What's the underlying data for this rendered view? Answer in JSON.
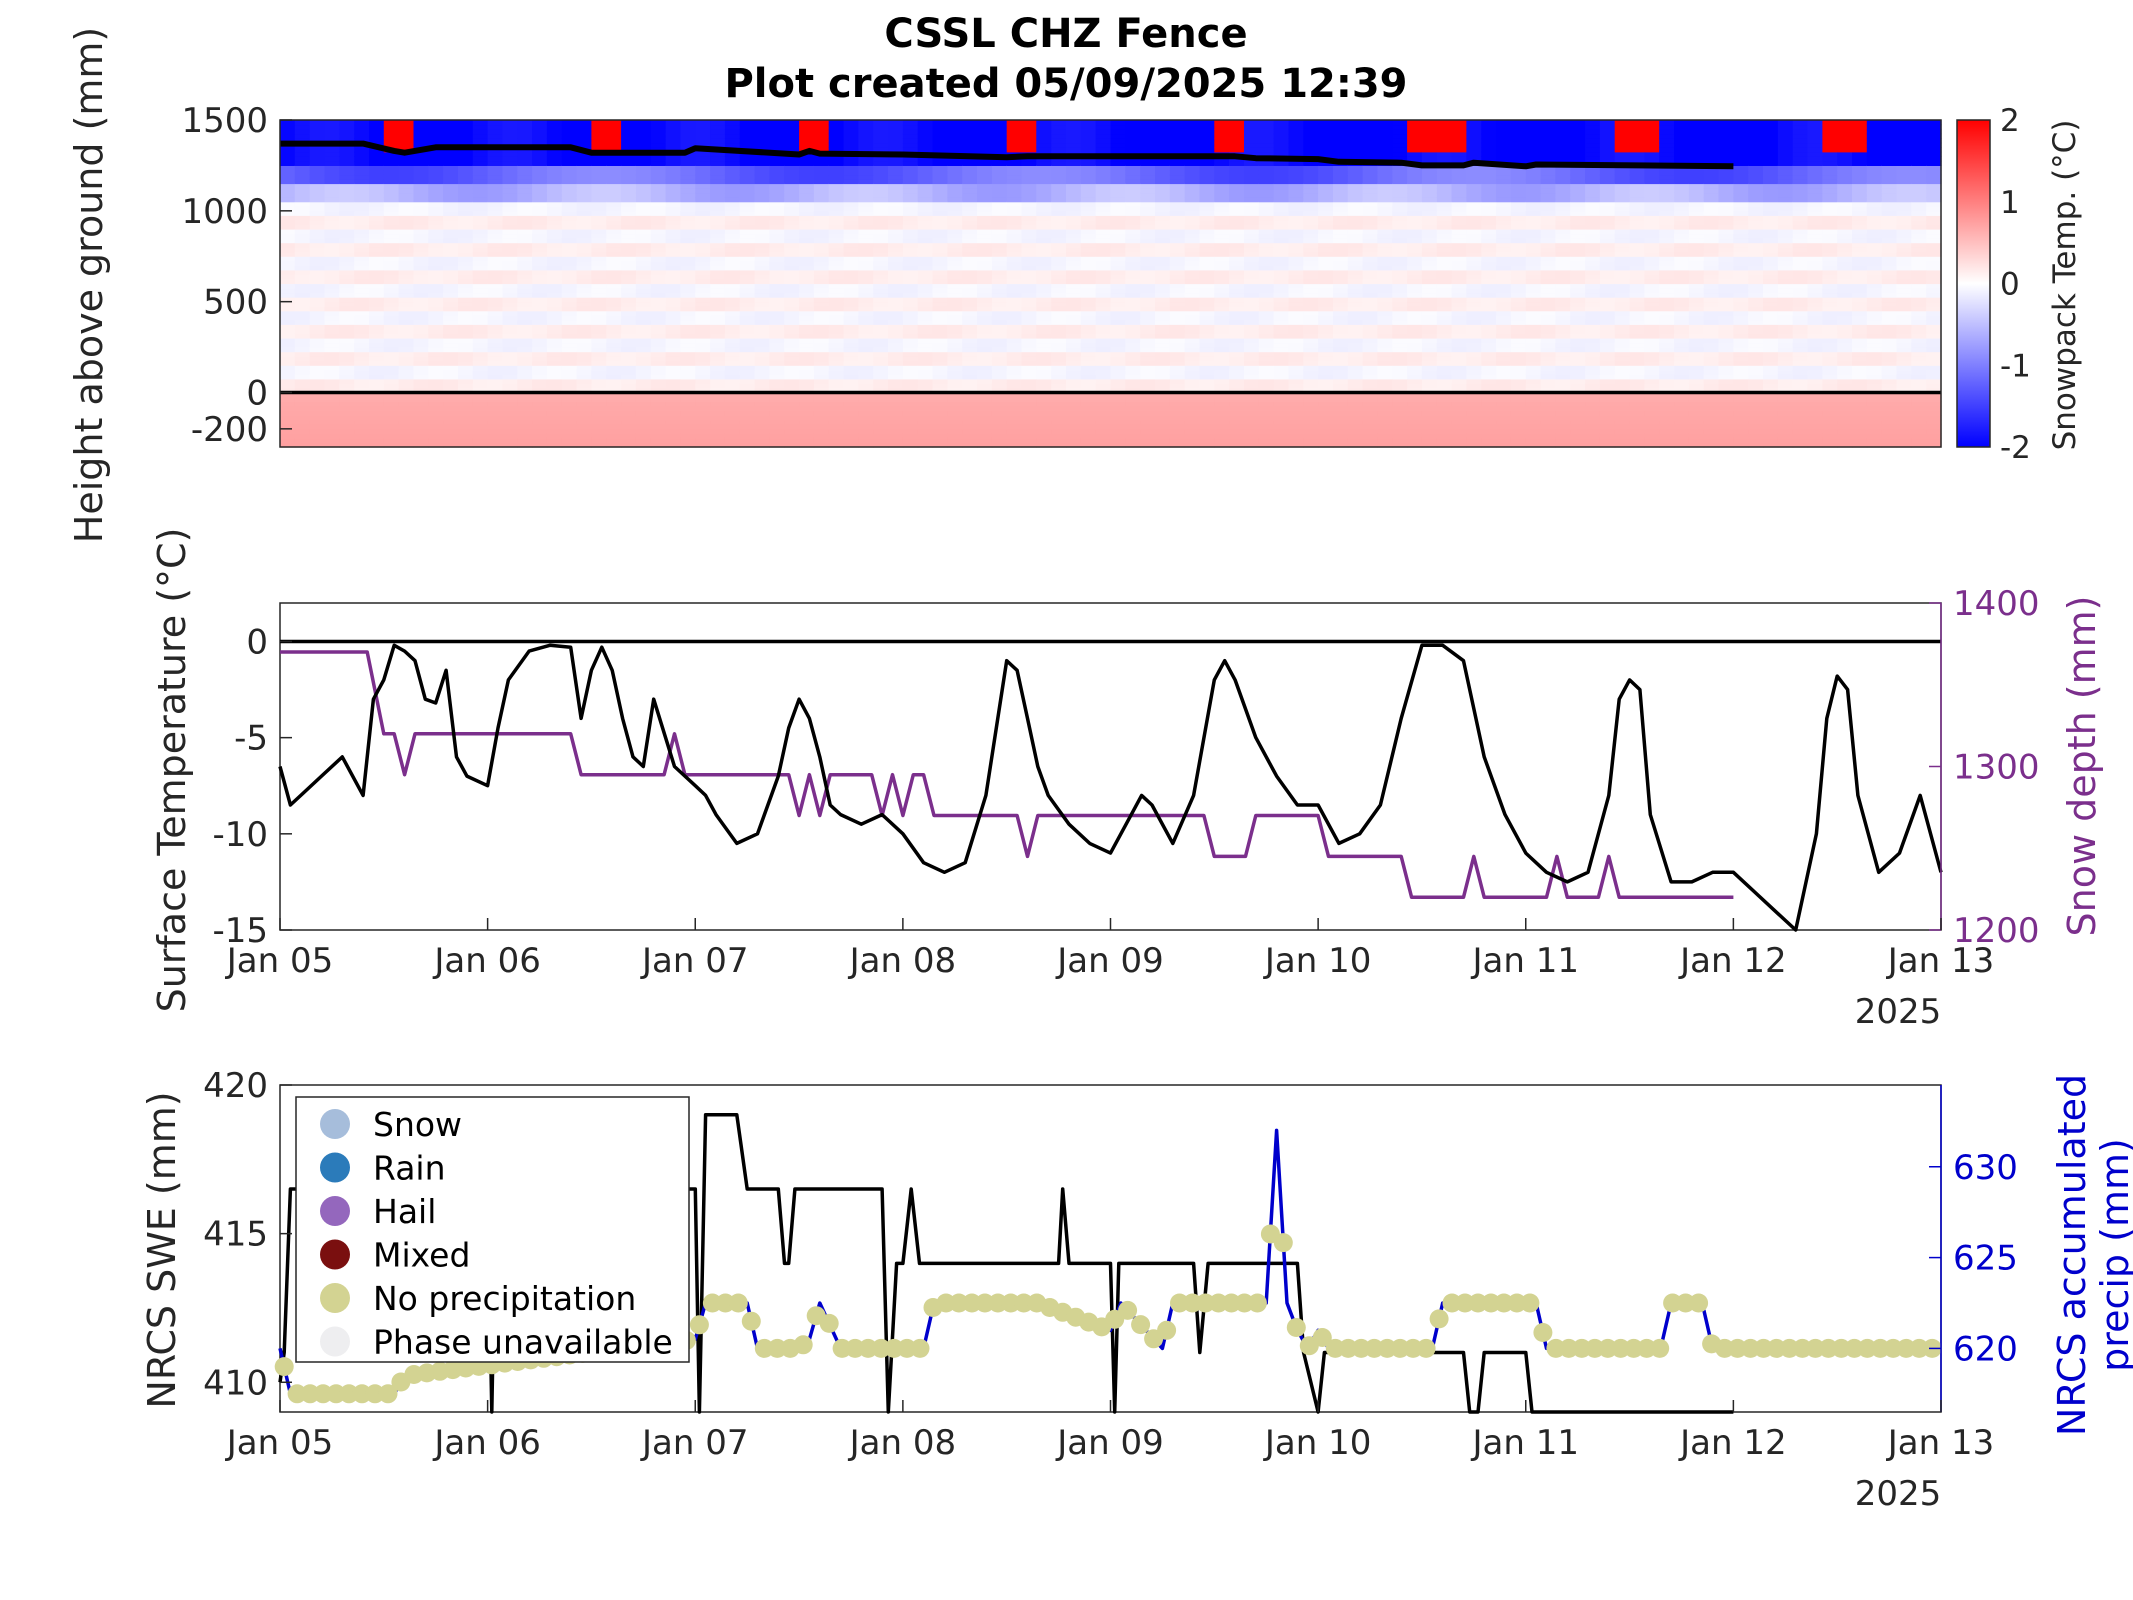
{
  "figure": {
    "title_line1": "CSSL CHZ Fence",
    "title_line2": "Plot created 05/09/2025 12:39",
    "year_label": "2025"
  },
  "colors": {
    "black": "#000000",
    "purple": "#7b2f8c",
    "blue": "#0000cc",
    "dot": "#d3d392",
    "cold": "#0000ff",
    "warm": "#ff0000"
  },
  "x_dates": [
    "Jan 05",
    "Jan 06",
    "Jan 07",
    "Jan 08",
    "Jan 09",
    "Jan 10",
    "Jan 11",
    "Jan 12",
    "Jan 13"
  ],
  "chart_data": [
    {
      "type": "heatmap",
      "ylabel": "Height above ground (mm)",
      "colorbar_label": "Snowpack Temp. (°C)",
      "x_range": [
        "Jan 05",
        "Jan 13"
      ],
      "ylim": [
        -300,
        1500
      ],
      "y_ticks": [
        1500,
        1000,
        500,
        0,
        -200
      ],
      "color_range": [
        -2,
        2
      ],
      "colorbar_ticks": [
        2,
        1,
        0,
        -1,
        -2
      ],
      "warm_patches_days": [
        [
          0.48,
          0.66
        ],
        [
          1.47,
          1.65
        ],
        [
          2.5,
          2.62
        ],
        [
          3.48,
          3.66
        ],
        [
          4.47,
          4.65
        ],
        [
          5.44,
          5.72
        ],
        [
          6.45,
          6.63
        ],
        [
          7.45,
          7.63
        ]
      ],
      "snow_surface_mm": {
        "x_days": [
          0,
          0.4,
          0.55,
          0.6,
          0.75,
          1.4,
          1.5,
          1.95,
          2.0,
          2.5,
          2.55,
          2.6,
          3.0,
          3.5,
          3.6,
          4.6,
          4.7,
          5.0,
          5.1,
          5.4,
          5.5,
          5.7,
          5.75,
          6.0,
          6.05,
          7.0
        ],
        "y": [
          1370,
          1370,
          1330,
          1320,
          1350,
          1350,
          1320,
          1320,
          1345,
          1310,
          1330,
          1315,
          1310,
          1295,
          1300,
          1300,
          1290,
          1285,
          1270,
          1265,
          1250,
          1250,
          1265,
          1245,
          1255,
          1245
        ]
      }
    },
    {
      "type": "line",
      "ylabel": "Surface Temperature (°C)",
      "ylabel_right": "Snow depth (mm)",
      "ylim": [
        -15,
        2
      ],
      "y_ticks": [
        0,
        -5,
        -10,
        -15
      ],
      "ylim_right": [
        1200,
        1400
      ],
      "y_ticks_right": [
        1400,
        1300,
        1200
      ],
      "surface_temp": {
        "x_days": [
          0,
          0.05,
          0.1,
          0.2,
          0.3,
          0.4,
          0.45,
          0.5,
          0.55,
          0.6,
          0.65,
          0.7,
          0.75,
          0.8,
          0.85,
          0.9,
          1.0,
          1.05,
          1.1,
          1.2,
          1.3,
          1.4,
          1.45,
          1.5,
          1.55,
          1.6,
          1.65,
          1.7,
          1.75,
          1.8,
          1.9,
          2.0,
          2.05,
          2.1,
          2.2,
          2.3,
          2.4,
          2.45,
          2.5,
          2.55,
          2.6,
          2.65,
          2.7,
          2.8,
          2.9,
          3.0,
          3.1,
          3.2,
          3.3,
          3.4,
          3.5,
          3.55,
          3.6,
          3.65,
          3.7,
          3.8,
          3.9,
          4.0,
          4.1,
          4.15,
          4.2,
          4.3,
          4.4,
          4.5,
          4.55,
          4.6,
          4.7,
          4.8,
          4.9,
          5.0,
          5.1,
          5.2,
          5.3,
          5.4,
          5.5,
          5.6,
          5.7,
          5.8,
          5.9,
          6.0,
          6.1,
          6.2,
          6.3,
          6.4,
          6.45,
          6.5,
          6.55,
          6.6,
          6.7,
          6.8,
          6.9,
          7.0,
          7.1,
          7.2,
          7.3,
          7.4,
          7.45,
          7.5,
          7.55,
          7.6,
          7.7,
          7.8,
          7.9,
          8.0
        ],
        "values": [
          -6.5,
          -8.5,
          -8,
          -7,
          -6,
          -8,
          -3,
          -2,
          -0.2,
          -0.5,
          -1,
          -3,
          -3.2,
          -1.5,
          -6,
          -7,
          -7.5,
          -4.5,
          -2,
          -0.5,
          -0.2,
          -0.3,
          -4,
          -1.5,
          -0.3,
          -1.5,
          -4,
          -6,
          -6.5,
          -3,
          -6.5,
          -7.5,
          -8,
          -9,
          -10.5,
          -10,
          -7,
          -4.5,
          -3,
          -4,
          -6,
          -8.5,
          -9,
          -9.5,
          -9,
          -10,
          -11.5,
          -12,
          -11.5,
          -8,
          -1,
          -1.5,
          -4,
          -6.5,
          -8,
          -9.5,
          -10.5,
          -11,
          -9,
          -8,
          -8.5,
          -10.5,
          -8,
          -2,
          -1,
          -2,
          -5,
          -7,
          -8.5,
          -8.5,
          -10.5,
          -10,
          -8.5,
          -4,
          -0.2,
          -0.2,
          -1,
          -6,
          -9,
          -11,
          -12,
          -12.5,
          -12,
          -8,
          -3,
          -2,
          -2.5,
          -9,
          -12.5,
          -12.5,
          -12,
          -12,
          -13,
          -14,
          -15,
          -10,
          -4,
          -1.8,
          -2.5,
          -8,
          -12,
          -11,
          -8,
          -12
        ]
      },
      "snow_depth": {
        "x_days": [
          0,
          0.42,
          0.5,
          0.55,
          0.6,
          0.65,
          1.4,
          1.45,
          1.5,
          1.85,
          1.9,
          1.95,
          2.0,
          2.45,
          2.5,
          2.55,
          2.6,
          2.65,
          2.7,
          2.85,
          2.9,
          2.95,
          3.0,
          3.05,
          3.1,
          3.15,
          3.2,
          3.25,
          3.55,
          3.6,
          3.65,
          4.45,
          4.5,
          4.65,
          4.7,
          5.0,
          5.05,
          5.4,
          5.45,
          5.7,
          5.75,
          5.8,
          5.85,
          6.1,
          6.15,
          6.2,
          6.35,
          6.4,
          6.45,
          7.0
        ],
        "values": [
          1370,
          1370,
          1320,
          1320,
          1295,
          1320,
          1320,
          1295,
          1295,
          1295,
          1320,
          1295,
          1295,
          1295,
          1270,
          1295,
          1270,
          1295,
          1295,
          1295,
          1270,
          1295,
          1270,
          1295,
          1295,
          1270,
          1270,
          1270,
          1270,
          1245,
          1270,
          1270,
          1245,
          1245,
          1270,
          1270,
          1245,
          1245,
          1220,
          1220,
          1245,
          1220,
          1220,
          1220,
          1245,
          1220,
          1220,
          1245,
          1220,
          1220
        ]
      }
    },
    {
      "type": "line",
      "ylabel": "NRCS SWE (mm)",
      "ylabel_right": "NRCS accumulated precip (mm)",
      "ylim": [
        409,
        420
      ],
      "y_ticks": [
        420,
        415,
        410
      ],
      "ylim_right": [
        616.5,
        634.5
      ],
      "y_ticks_right": [
        630,
        625,
        620
      ],
      "swe": {
        "x_days": [
          0,
          0.02,
          0.05,
          0.1,
          1.0,
          1.02,
          1.04,
          2.0,
          2.02,
          2.05,
          2.2,
          2.25,
          2.4,
          2.43,
          2.45,
          2.48,
          2.55,
          2.9,
          2.93,
          2.97,
          3.0,
          3.04,
          3.08,
          3.1,
          3.15,
          3.75,
          3.77,
          3.8,
          4.0,
          4.02,
          4.04,
          4.4,
          4.43,
          4.47,
          4.5,
          4.9,
          4.93,
          5.0,
          5.03,
          5.7,
          5.73,
          5.77,
          5.8,
          6.0,
          6.03,
          6.07,
          6.1,
          7.0
        ],
        "values": [
          410,
          411,
          416.5,
          416.5,
          416.5,
          409,
          416.5,
          416.5,
          409,
          419,
          419,
          416.5,
          416.5,
          414,
          414,
          416.5,
          416.5,
          416.5,
          409,
          414,
          414,
          416.5,
          414,
          414,
          414,
          414,
          416.5,
          414,
          414,
          409,
          414,
          414,
          411,
          414,
          414,
          414,
          411,
          409,
          411,
          411,
          409,
          409,
          411,
          411,
          409,
          409,
          409,
          409
        ]
      },
      "precip": {
        "x_days": [
          0,
          0.05,
          0.55,
          0.6,
          2.0,
          2.05,
          2.25,
          2.3,
          2.5,
          2.55,
          2.6,
          2.7,
          3.1,
          3.15,
          3.6,
          3.65,
          4.0,
          4.05,
          4.25,
          4.3,
          4.75,
          4.8,
          4.85,
          4.9,
          4.95,
          5.0,
          5.05,
          5.55,
          5.6,
          6.05,
          6.1,
          6.65,
          6.7,
          6.85,
          6.9,
          8.0
        ],
        "values": [
          620,
          617.5,
          617.5,
          618.5,
          620.5,
          622.5,
          622.5,
          620,
          620,
          620.5,
          622.5,
          620,
          620,
          622.5,
          622.5,
          622.5,
          621,
          622.5,
          620,
          622.5,
          622.5,
          632,
          622.5,
          621,
          620,
          621,
          620,
          620,
          622.5,
          622.5,
          620,
          620,
          622.5,
          622.5,
          620,
          620
        ]
      },
      "legend": {
        "items": [
          {
            "label": "Snow",
            "color": "#a6bddb"
          },
          {
            "label": "Rain",
            "color": "#2b7bba"
          },
          {
            "label": "Hail",
            "color": "#9467bd"
          },
          {
            "label": "Mixed",
            "color": "#7a0f0f"
          },
          {
            "label": "No precipitation",
            "color": "#d3d392"
          },
          {
            "label": "Phase unavailable",
            "color": "#eeeef0"
          }
        ]
      }
    }
  ]
}
